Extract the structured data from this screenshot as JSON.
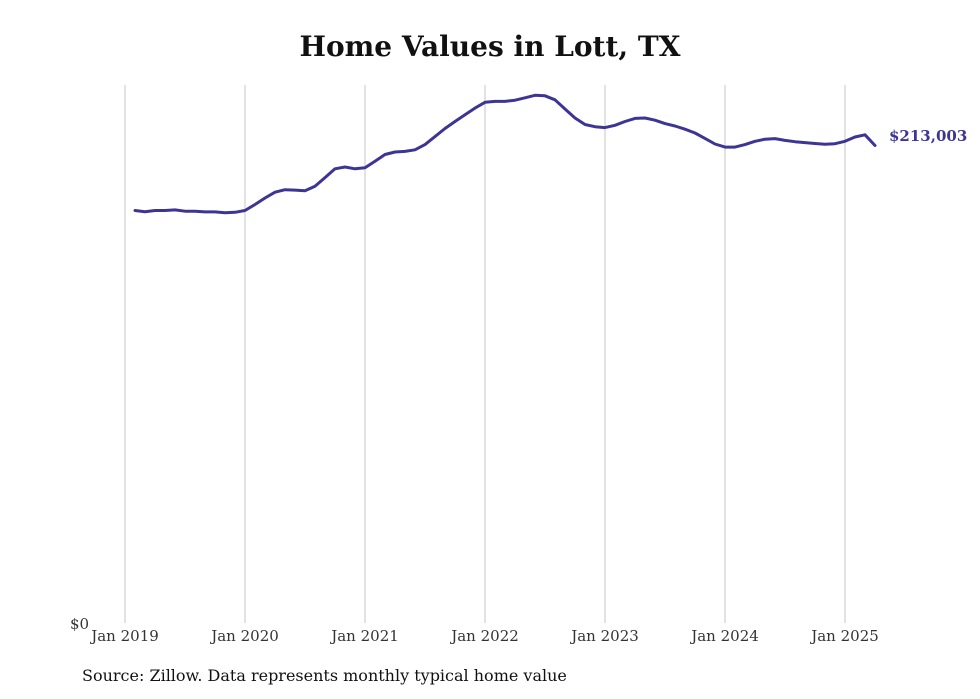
{
  "chart_data": {
    "type": "line",
    "title": "Home Values in Lott, TX",
    "source": "Source: Zillow. Data represents monthly typical home value",
    "x_tick_labels": [
      "Jan 2019",
      "Jan 2020",
      "Jan 2021",
      "Jan 2022",
      "Jan 2023",
      "Jan 2024",
      "Jan 2025"
    ],
    "y_tick_label": "$0",
    "end_label": "$213,003",
    "ylim": [
      0,
      240000
    ],
    "xlim": [
      2019.0,
      2025.333
    ],
    "grid": "vertical",
    "line_color": "#3d3594",
    "series": [
      {
        "x": [
          2019.083,
          2019.167,
          2019.25,
          2019.333,
          2019.417,
          2019.5,
          2019.583,
          2019.667,
          2019.75,
          2019.833,
          2019.917,
          2020.0,
          2020.083,
          2020.167,
          2020.25,
          2020.333,
          2020.417,
          2020.5,
          2020.583,
          2020.667,
          2020.75,
          2020.833,
          2020.917,
          2021.0,
          2021.083,
          2021.167,
          2021.25,
          2021.333,
          2021.417,
          2021.5,
          2021.583,
          2021.667,
          2021.75,
          2021.833,
          2021.917,
          2022.0,
          2022.083,
          2022.167,
          2022.25,
          2022.333,
          2022.417,
          2022.5,
          2022.583,
          2022.667,
          2022.75,
          2022.833,
          2022.917,
          2023.0,
          2023.083,
          2023.167,
          2023.25,
          2023.333,
          2023.417,
          2023.5,
          2023.583,
          2023.667,
          2023.75,
          2023.833,
          2023.917,
          2024.0,
          2024.083,
          2024.167,
          2024.25,
          2024.333,
          2024.417,
          2024.5,
          2024.583,
          2024.667,
          2024.75,
          2024.833,
          2024.917,
          2025.0,
          2025.083,
          2025.167,
          2025.25
        ],
        "values": [
          184000,
          183500,
          184000,
          184000,
          184300,
          183700,
          183700,
          183400,
          183400,
          183000,
          183200,
          184000,
          186700,
          189600,
          192200,
          193300,
          193100,
          192800,
          194800,
          198700,
          202600,
          203400,
          202600,
          203100,
          206000,
          209000,
          210100,
          210400,
          211100,
          213400,
          217000,
          220600,
          223700,
          226700,
          229700,
          232300,
          232700,
          232700,
          233200,
          234300,
          235400,
          235200,
          233400,
          229300,
          225300,
          222400,
          221400,
          221000,
          222000,
          223700,
          225100,
          225300,
          224300,
          222800,
          221700,
          220300,
          218600,
          216200,
          213700,
          212300,
          212300,
          213400,
          214900,
          215800,
          216100,
          215300,
          214700,
          214300,
          213900,
          213600,
          213800,
          214900,
          216800,
          217800,
          213003
        ]
      }
    ]
  }
}
